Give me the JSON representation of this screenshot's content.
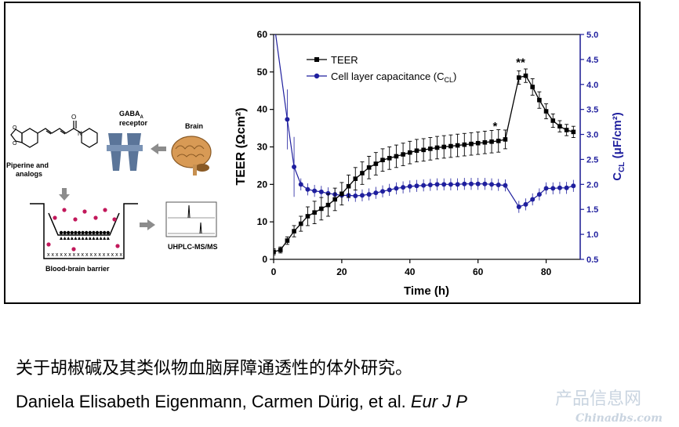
{
  "schematic": {
    "receptor_label": "GABA",
    "receptor_sub": "A",
    "receptor_label2": "receptor",
    "brain_label": "Brain",
    "compound_label_1": "Piperine and",
    "compound_label_2": "analogs",
    "assay_label": "UHPLC-MS/MS",
    "barrier_label": "Blood-brain barrier",
    "bottom_x_row": "x x x x x x x x x x x x x x x x x x"
  },
  "chart_data": {
    "type": "line",
    "xlabel": "Time (h)",
    "ylabel_left": "TEER (Ωcm²)",
    "ylabel_right": "C",
    "ylabel_right_sub": "CL",
    "ylabel_right_tail": " (μF/cm²)",
    "xlim": [
      0,
      90
    ],
    "ylim_left": [
      0,
      60
    ],
    "ylim_right": [
      0.5,
      5.0
    ],
    "x_ticks": [
      "0",
      "20",
      "40",
      "60",
      "80"
    ],
    "y_ticks_left": [
      "0",
      "10",
      "20",
      "30",
      "40",
      "50",
      "60"
    ],
    "y_ticks_right": [
      "0.5",
      "1.0",
      "1.5",
      "2.0",
      "2.5",
      "3.0",
      "3.5",
      "4.0",
      "4.5",
      "5.0"
    ],
    "legend_position": "top-left",
    "annotations": [
      {
        "text": "*",
        "x": 65,
        "y": 34.5
      },
      {
        "text": "**",
        "x": 72.5,
        "y": 51.5
      }
    ],
    "series": [
      {
        "name": "TEER",
        "axis": "left",
        "color": "#000000",
        "marker": "square",
        "x": [
          0,
          2,
          4,
          6,
          8,
          10,
          12,
          14,
          16,
          18,
          20,
          22,
          24,
          26,
          28,
          30,
          32,
          34,
          36,
          38,
          40,
          42,
          44,
          46,
          48,
          50,
          52,
          54,
          56,
          58,
          60,
          62,
          64,
          66,
          68,
          72,
          74,
          76,
          78,
          80,
          82,
          84,
          86,
          88
        ],
        "values": [
          2,
          2.5,
          5,
          7.5,
          9.5,
          11.5,
          12.5,
          13.5,
          14.5,
          16,
          17.5,
          19.5,
          21.5,
          23,
          24.5,
          25.5,
          26.5,
          27,
          27.5,
          28,
          28.5,
          29,
          29.2,
          29.5,
          29.8,
          30,
          30.2,
          30.4,
          30.6,
          30.8,
          31,
          31.2,
          31.4,
          31.6,
          32,
          48.5,
          49,
          46,
          42.5,
          39.5,
          37,
          35.5,
          34.5,
          34
        ],
        "error": [
          0.8,
          0.8,
          1,
          1.5,
          2,
          2.5,
          3,
          3,
          3,
          3,
          3,
          3,
          3,
          3,
          3,
          3,
          3,
          3,
          3,
          3,
          3,
          3,
          3,
          3,
          3,
          3,
          3,
          3,
          3,
          3,
          3,
          3,
          3,
          3,
          2.5,
          1.8,
          1.8,
          2.2,
          2.2,
          2,
          1.8,
          1.5,
          1.5,
          1.5
        ]
      },
      {
        "name": "Cell layer capacitance (C",
        "name_sub": "CL",
        "name_tail": ")",
        "axis": "right",
        "color": "#1f1f9e",
        "marker": "circle",
        "x": [
          0,
          4,
          6,
          8,
          10,
          12,
          14,
          16,
          18,
          20,
          22,
          24,
          26,
          28,
          30,
          32,
          34,
          36,
          38,
          40,
          42,
          44,
          46,
          48,
          50,
          52,
          54,
          56,
          58,
          60,
          62,
          64,
          66,
          68,
          72,
          74,
          76,
          78,
          80,
          82,
          84,
          86,
          88
        ],
        "values": [
          5.3,
          3.3,
          2.35,
          2.0,
          1.9,
          1.87,
          1.85,
          1.82,
          1.8,
          1.78,
          1.78,
          1.77,
          1.78,
          1.8,
          1.83,
          1.86,
          1.89,
          1.92,
          1.94,
          1.96,
          1.97,
          1.98,
          1.99,
          2.0,
          2.0,
          2.0,
          2.0,
          2.01,
          2.01,
          2.01,
          2.01,
          2.0,
          1.99,
          1.98,
          1.55,
          1.6,
          1.7,
          1.8,
          1.92,
          1.92,
          1.93,
          1.93,
          1.97
        ]
      }
    ]
  },
  "caption": {
    "title": "关于胡椒碱及其类似物血脑屏障通透性的体外研究。",
    "authors": "Daniela Elisabeth Eigenmann, Carmen Dürig, et al. ",
    "journal": "Eur J P"
  },
  "watermark": {
    "line1": "产品信息网",
    "line2": "Chinadbs.com"
  },
  "colors": {
    "capacitance": "#1f1f9e",
    "receptor": "#5b7599",
    "brain": "#d89a55",
    "dots": "#c2185b",
    "arrow": "#8c8c8c"
  }
}
